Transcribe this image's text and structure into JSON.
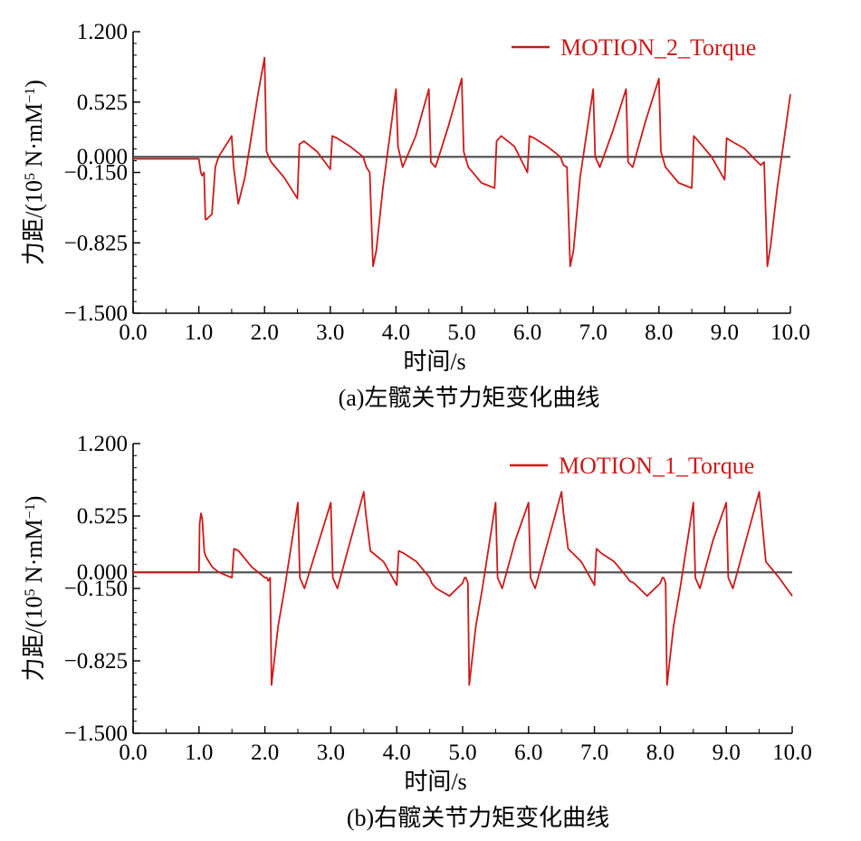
{
  "chart_data": [
    {
      "type": "line",
      "caption": "(a)左髋关节力矩变化曲线",
      "xlabel": "时间/s",
      "ylabel": "力距/(10",
      "ylabel_sup": "5",
      "ylabel_unit": " N·mM",
      "ylabel_sup2": "−1",
      "ylabel_end": ")",
      "xlim": [
        0,
        10
      ],
      "ylim": [
        -1.5,
        1.2
      ],
      "x_tick_labels": [
        "0.0",
        "1.0",
        "2.0",
        "3.0",
        "4.0",
        "5.0",
        "6.0",
        "7.0",
        "8.0",
        "9.0",
        "10.0"
      ],
      "x_ticks": [
        0,
        1,
        2,
        3,
        4,
        5,
        6,
        7,
        8,
        9,
        10
      ],
      "y_tick_labels": [
        "1.200",
        "0.525",
        "0.000",
        "−0.150",
        "−0.825",
        "−1.500"
      ],
      "y_ticks": [
        1.2,
        0.525,
        0,
        -0.15,
        -0.825,
        -1.5
      ],
      "baseline": 0,
      "legend": "top-right",
      "series": [
        {
          "name": "MOTION_2_Torque",
          "color": "#cc1a1a",
          "x": [
            0,
            1.0,
            1.03,
            1.05,
            1.08,
            1.1,
            1.12,
            1.15,
            1.2,
            1.25,
            1.3,
            1.5,
            1.53,
            1.6,
            1.7,
            1.8,
            1.9,
            2.0,
            2.03,
            2.1,
            2.3,
            2.5,
            2.53,
            2.6,
            2.8,
            3.0,
            3.03,
            3.1,
            3.3,
            3.5,
            3.55,
            3.6,
            3.65,
            3.7,
            3.8,
            4.0,
            4.03,
            4.1,
            4.3,
            4.5,
            4.53,
            4.6,
            4.8,
            5.0,
            5.03,
            5.1,
            5.3,
            5.5,
            5.53,
            5.6,
            5.8,
            6.0,
            6.03,
            6.1,
            6.3,
            6.5,
            6.55,
            6.6,
            6.65,
            6.7,
            6.8,
            7.0,
            7.03,
            7.1,
            7.3,
            7.5,
            7.53,
            7.6,
            7.8,
            8.0,
            8.03,
            8.1,
            8.3,
            8.5,
            8.53,
            8.6,
            8.8,
            9.0,
            9.03,
            9.1,
            9.3,
            9.5,
            9.55,
            9.6,
            9.65,
            9.7,
            9.8,
            10.0
          ],
          "y": [
            -0.02,
            -0.02,
            -0.15,
            -0.18,
            -0.15,
            -0.6,
            -0.6,
            -0.58,
            -0.55,
            -0.1,
            0.0,
            0.2,
            -0.1,
            -0.45,
            -0.2,
            0.2,
            0.6,
            0.95,
            0.05,
            -0.05,
            -0.2,
            -0.4,
            0.12,
            0.15,
            0.05,
            -0.12,
            0.2,
            0.18,
            0.1,
            0.0,
            -0.1,
            -0.15,
            -1.05,
            -0.9,
            -0.3,
            0.65,
            0.1,
            -0.1,
            0.2,
            0.65,
            -0.05,
            -0.1,
            0.3,
            0.75,
            0.05,
            -0.1,
            -0.25,
            -0.3,
            0.15,
            0.2,
            0.1,
            -0.15,
            0.2,
            0.18,
            0.1,
            0.0,
            -0.08,
            -0.1,
            -1.05,
            -0.9,
            -0.2,
            0.65,
            0.0,
            -0.1,
            0.25,
            0.65,
            -0.05,
            -0.1,
            0.35,
            0.75,
            0.05,
            -0.1,
            -0.25,
            -0.3,
            0.2,
            0.15,
            0.0,
            -0.22,
            0.18,
            0.15,
            0.08,
            -0.05,
            -0.08,
            -0.05,
            -1.05,
            -0.85,
            -0.3,
            0.6
          ]
        }
      ]
    },
    {
      "type": "line",
      "caption": "(b)右髋关节力矩变化曲线",
      "xlabel": "时间/s",
      "ylabel": "力距/(10",
      "ylabel_sup": "5",
      "ylabel_unit": " N·mM",
      "ylabel_sup2": "−1",
      "ylabel_end": ")",
      "xlim": [
        0,
        10
      ],
      "ylim": [
        -1.5,
        1.2
      ],
      "x_tick_labels": [
        "0.0",
        "1.0",
        "2.0",
        "3.0",
        "4.0",
        "5.0",
        "6.0",
        "7.0",
        "8.0",
        "9.0",
        "10.0"
      ],
      "x_ticks": [
        0,
        1,
        2,
        3,
        4,
        5,
        6,
        7,
        8,
        9,
        10
      ],
      "y_tick_labels": [
        "1.200",
        "0.525",
        "0.000",
        "−0.150",
        "−0.825",
        "−1.500"
      ],
      "y_ticks": [
        1.2,
        0.525,
        0,
        -0.15,
        -0.825,
        -1.5
      ],
      "baseline": 0,
      "legend": "top-right",
      "series": [
        {
          "name": "MOTION_1_Torque",
          "color": "#cc1a1a",
          "x": [
            0,
            1.0,
            1.01,
            1.03,
            1.05,
            1.08,
            1.1,
            1.15,
            1.2,
            1.3,
            1.5,
            1.53,
            1.6,
            1.8,
            2.0,
            2.03,
            2.05,
            2.08,
            2.1,
            2.2,
            2.3,
            2.5,
            2.53,
            2.6,
            2.8,
            3.0,
            3.03,
            3.1,
            3.3,
            3.5,
            3.53,
            3.6,
            3.8,
            4.0,
            4.03,
            4.1,
            4.3,
            4.5,
            4.53,
            4.6,
            4.8,
            5.0,
            5.03,
            5.05,
            5.08,
            5.1,
            5.2,
            5.3,
            5.5,
            5.53,
            5.6,
            5.8,
            6.0,
            6.03,
            6.1,
            6.3,
            6.5,
            6.53,
            6.6,
            6.8,
            7.0,
            7.03,
            7.1,
            7.3,
            7.5,
            7.53,
            7.6,
            7.8,
            8.0,
            8.03,
            8.05,
            8.08,
            8.1,
            8.2,
            8.3,
            8.5,
            8.53,
            8.6,
            8.8,
            9.0,
            9.03,
            9.1,
            9.3,
            9.5,
            9.53,
            9.6,
            9.8,
            10.0
          ],
          "y": [
            0,
            0,
            0.45,
            0.55,
            0.5,
            0.2,
            0.15,
            0.1,
            0.05,
            0.0,
            -0.05,
            0.22,
            0.2,
            0.05,
            -0.05,
            -0.05,
            -0.08,
            -0.05,
            -1.05,
            -0.5,
            -0.15,
            0.65,
            -0.05,
            -0.15,
            0.25,
            0.65,
            -0.05,
            -0.15,
            0.3,
            0.75,
            0.55,
            0.2,
            0.1,
            -0.12,
            0.2,
            0.18,
            0.1,
            -0.05,
            -0.1,
            -0.15,
            -0.22,
            -0.1,
            -0.05,
            -0.05,
            -0.1,
            -1.05,
            -0.5,
            -0.15,
            0.65,
            -0.05,
            -0.15,
            0.3,
            0.65,
            -0.05,
            -0.15,
            0.3,
            0.75,
            0.55,
            0.22,
            0.1,
            -0.12,
            0.22,
            0.18,
            0.1,
            -0.05,
            -0.08,
            -0.1,
            -0.22,
            -0.1,
            -0.05,
            -0.05,
            -0.1,
            -1.05,
            -0.5,
            -0.15,
            0.65,
            -0.05,
            -0.15,
            0.3,
            0.65,
            -0.05,
            -0.15,
            0.3,
            0.75,
            0.55,
            0.1,
            -0.05,
            -0.22
          ]
        }
      ]
    }
  ]
}
